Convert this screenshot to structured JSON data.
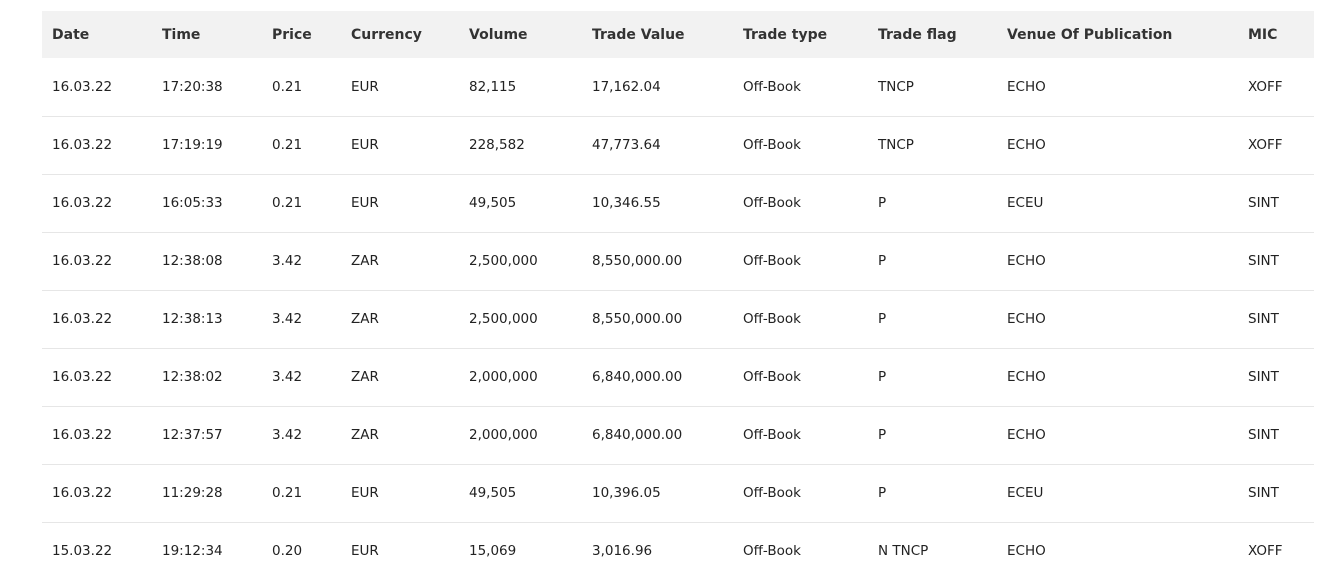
{
  "table": {
    "headers": [
      "Date",
      "Time",
      "Price",
      "Currency",
      "Volume",
      "Trade Value",
      "Trade type",
      "Trade flag",
      "Venue Of Publication",
      "MIC"
    ],
    "rows": [
      [
        "16.03.22",
        "17:20:38",
        "0.21",
        "EUR",
        "82,115",
        "17,162.04",
        "Off-Book",
        "TNCP",
        "ECHO",
        "XOFF"
      ],
      [
        "16.03.22",
        "17:19:19",
        "0.21",
        "EUR",
        "228,582",
        "47,773.64",
        "Off-Book",
        "TNCP",
        "ECHO",
        "XOFF"
      ],
      [
        "16.03.22",
        "16:05:33",
        "0.21",
        "EUR",
        "49,505",
        "10,346.55",
        "Off-Book",
        "P",
        "ECEU",
        "SINT"
      ],
      [
        "16.03.22",
        "12:38:08",
        "3.42",
        "ZAR",
        "2,500,000",
        "8,550,000.00",
        "Off-Book",
        "P",
        "ECHO",
        "SINT"
      ],
      [
        "16.03.22",
        "12:38:13",
        "3.42",
        "ZAR",
        "2,500,000",
        "8,550,000.00",
        "Off-Book",
        "P",
        "ECHO",
        "SINT"
      ],
      [
        "16.03.22",
        "12:38:02",
        "3.42",
        "ZAR",
        "2,000,000",
        "6,840,000.00",
        "Off-Book",
        "P",
        "ECHO",
        "SINT"
      ],
      [
        "16.03.22",
        "12:37:57",
        "3.42",
        "ZAR",
        "2,000,000",
        "6,840,000.00",
        "Off-Book",
        "P",
        "ECHO",
        "SINT"
      ],
      [
        "16.03.22",
        "11:29:28",
        "0.21",
        "EUR",
        "49,505",
        "10,396.05",
        "Off-Book",
        "P",
        "ECEU",
        "SINT"
      ],
      [
        "15.03.22",
        "19:12:34",
        "0.20",
        "EUR",
        "15,069",
        "3,016.96",
        "Off-Book",
        "N TNCP",
        "ECHO",
        "XOFF"
      ]
    ]
  }
}
